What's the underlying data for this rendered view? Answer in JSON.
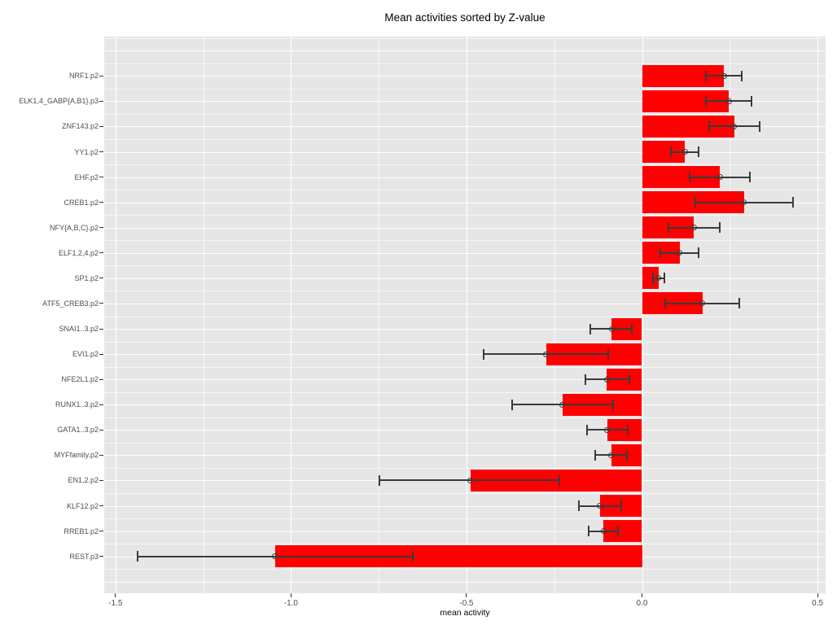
{
  "chart_data": {
    "type": "bar",
    "orientation": "horizontal",
    "title": "Mean activities sorted by Z-value",
    "xlabel": "mean activity",
    "ylabel": "",
    "legend": "none",
    "grid": "on",
    "categories": [
      "NRF1.p2",
      "ELK1,4_GABP{A,B1}.p3",
      "ZNF143.p2",
      "YY1.p2",
      "EHF.p2",
      "CREB1.p2",
      "NFY{A,B,C}.p2",
      "ELF1,2,4.p2",
      "SP1.p2",
      "ATF5_CREB3.p2",
      "SNAI1..3.p2",
      "EVI1.p2",
      "NFE2L1.p2",
      "RUNX1..3.p2",
      "GATA1..3.p2",
      "MYFfamily.p2",
      "EN1,2.p2",
      "KLF12.p2",
      "RREB1.p2",
      "REST.p3"
    ],
    "values": [
      0.233,
      0.247,
      0.263,
      0.122,
      0.222,
      0.29,
      0.148,
      0.107,
      0.047,
      0.172,
      -0.086,
      -0.273,
      -0.1,
      -0.227,
      -0.099,
      -0.088,
      -0.489,
      -0.12,
      -0.11,
      -1.046
    ],
    "error_low": [
      0.183,
      0.183,
      0.191,
      0.083,
      0.135,
      0.151,
      0.075,
      0.052,
      0.031,
      0.067,
      -0.148,
      -0.451,
      -0.161,
      -0.371,
      -0.157,
      -0.134,
      -0.748,
      -0.18,
      -0.151,
      -1.437
    ],
    "error_high": [
      0.284,
      0.311,
      0.336,
      0.161,
      0.308,
      0.429,
      0.222,
      0.161,
      0.064,
      0.278,
      -0.03,
      -0.097,
      -0.035,
      -0.083,
      -0.04,
      -0.043,
      -0.236,
      -0.06,
      -0.068,
      -0.653
    ],
    "xlim": [
      -1.532,
      0.523
    ],
    "xticks": [
      -1.5,
      -1.0,
      -0.5,
      0.0,
      0.5
    ],
    "xtick_labels": [
      "-1.5",
      "-1.0",
      "-0.5",
      "0.0",
      "0.5"
    ],
    "x_minor_ticks": [
      -1.25,
      -0.75,
      -0.25,
      0.25
    ],
    "colors": {
      "bar": "#FF0000",
      "errorbar": "#3B3B3B",
      "panel_background": "#E6E6E6",
      "gridline": "#FFFFFF",
      "tick_mark": "#333333",
      "tick_label": "#4D4D4D",
      "title": "#000000"
    }
  }
}
